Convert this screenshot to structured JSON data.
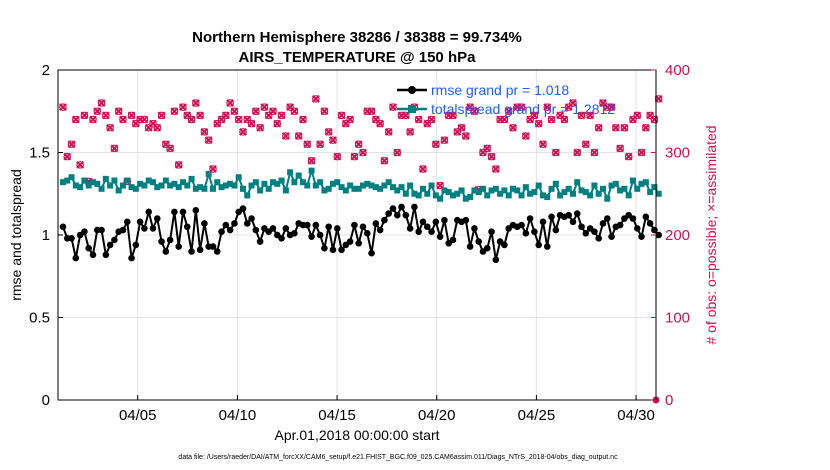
{
  "chart_data": {
    "type": "line",
    "title": "Northern Hemisphere 38286 / 38388 = 99.734%",
    "subtitle": "AIRS_TEMPERATURE @ 150 hPa",
    "xlabel": "Apr.01,2018 00:00:00 start",
    "ylabel": "rmse and totalspread",
    "y2label": "# of obs: o=possible; ×=assimilated",
    "footer": "data file: /Users/raeder/DAI/ATM_forcXX/CAM6_setup/f.e21.FHIST_BGC.f09_025.CAM6assim.011/Diags_NTrS_2018-04/obs_diag_output.nc",
    "x_ticks": [
      "04/05",
      "04/10",
      "04/15",
      "04/20",
      "04/25",
      "04/30"
    ],
    "x_tick_days": [
      5,
      10,
      15,
      20,
      25,
      30
    ],
    "xlim": [
      1,
      31
    ],
    "ylim": [
      0,
      2
    ],
    "y_ticks": [
      "0",
      "0.5",
      "1",
      "1.5",
      "2"
    ],
    "y2lim": [
      0,
      400
    ],
    "y2_ticks": [
      "0",
      "100",
      "200",
      "300",
      "400"
    ],
    "colors": {
      "rmse": "#000000",
      "spread": "#008080",
      "obs": "#cc1155",
      "legend_text": "#1f5cff"
    },
    "legend": [
      {
        "name": "rmse grand pr = 1.018"
      },
      {
        "name": "totalspread grand pr = 1.2812"
      }
    ],
    "series": [
      {
        "name": "rmse",
        "values": [
          1.05,
          0.98,
          0.98,
          0.86,
          1.0,
          1.02,
          0.92,
          0.88,
          1.03,
          1.03,
          0.88,
          0.94,
          0.97,
          1.02,
          1.03,
          1.08,
          0.86,
          0.94,
          1.08,
          1.04,
          1.14,
          1.04,
          1.1,
          0.96,
          0.9,
          0.97,
          1.14,
          0.93,
          1.14,
          1.05,
          0.9,
          1.15,
          0.91,
          1.07,
          0.93,
          0.93,
          0.9,
          1.02,
          1.06,
          1.03,
          1.07,
          1.14,
          1.16,
          1.07,
          1.1,
          1.03,
          0.96,
          1.04,
          1.02,
          1.04,
          1.0,
          0.98,
          1.04,
          1.0,
          1.01,
          1.07,
          1.06,
          1.06,
          0.99,
          1.06,
          1.0,
          0.92,
          1.05,
          0.91,
          1.04,
          0.91,
          0.94,
          0.96,
          1.06,
          0.95,
          1.05,
          1.01,
          0.89,
          1.07,
          1.03,
          1.09,
          1.13,
          1.16,
          1.12,
          1.17,
          1.12,
          1.04,
          1.17,
          1.02,
          1.08,
          1.05,
          1.02,
          1.08,
          0.99,
          1.09,
          0.95,
          0.97,
          1.09,
          1.08,
          1.09,
          0.93,
          1.04,
          0.96,
          0.9,
          0.92,
          1.02,
          0.85,
          0.96,
          0.94,
          1.04,
          1.06,
          1.05,
          1.06,
          1.01,
          1.1,
          1.02,
          0.94,
          1.08,
          0.93,
          1.11,
          1.03,
          1.12,
          1.11,
          1.12,
          1.08,
          1.13,
          1.05,
          1.01,
          1.04,
          1.02,
          0.98,
          1.07,
          1.1,
          0.99,
          1.05,
          1.06,
          1.1,
          1.12,
          1.1,
          1.04,
          0.99,
          1.11,
          1.07,
          1.03,
          1.0
        ]
      },
      {
        "name": "totalspread",
        "values": [
          1.32,
          1.33,
          1.35,
          1.3,
          1.29,
          1.33,
          1.3,
          1.32,
          1.31,
          1.28,
          1.34,
          1.3,
          1.33,
          1.27,
          1.3,
          1.33,
          1.29,
          1.28,
          1.31,
          1.3,
          1.33,
          1.32,
          1.29,
          1.3,
          1.33,
          1.3,
          1.31,
          1.29,
          1.32,
          1.3,
          1.34,
          1.28,
          1.29,
          1.28,
          1.37,
          1.28,
          1.32,
          1.29,
          1.3,
          1.31,
          1.3,
          1.35,
          1.28,
          1.24,
          1.3,
          1.32,
          1.27,
          1.31,
          1.28,
          1.32,
          1.31,
          1.33,
          1.27,
          1.38,
          1.32,
          1.36,
          1.32,
          1.3,
          1.39,
          1.3,
          1.32,
          1.27,
          1.28,
          1.31,
          1.32,
          1.29,
          1.27,
          1.3,
          1.28,
          1.28,
          1.3,
          1.31,
          1.3,
          1.29,
          1.28,
          1.3,
          1.32,
          1.29,
          1.27,
          1.29,
          1.25,
          1.3,
          1.25,
          1.24,
          1.28,
          1.25,
          1.3,
          1.24,
          1.22,
          1.27,
          1.26,
          1.24,
          1.25,
          1.27,
          1.22,
          1.23,
          1.27,
          1.26,
          1.28,
          1.24,
          1.27,
          1.28,
          1.25,
          1.27,
          1.24,
          1.28,
          1.27,
          1.24,
          1.29,
          1.25,
          1.26,
          1.3,
          1.24,
          1.23,
          1.28,
          1.31,
          1.24,
          1.26,
          1.28,
          1.25,
          1.32,
          1.27,
          1.26,
          1.24,
          1.3,
          1.25,
          1.28,
          1.22,
          1.3,
          1.31,
          1.27,
          1.28,
          1.24,
          1.33,
          1.28,
          1.31,
          1.32,
          1.26,
          1.29,
          1.25
        ]
      },
      {
        "name": "obs_possible",
        "values": [
          355,
          295,
          310,
          340,
          285,
          345,
          265,
          340,
          350,
          360,
          345,
          330,
          305,
          350,
          340,
          265,
          345,
          335,
          340,
          340,
          330,
          335,
          330,
          345,
          310,
          305,
          350,
          285,
          355,
          345,
          340,
          360,
          345,
          325,
          315,
          280,
          335,
          340,
          345,
          360,
          350,
          340,
          325,
          340,
          335,
          350,
          330,
          355,
          345,
          350,
          335,
          345,
          320,
          355,
          350,
          320,
          340,
          310,
          290,
          365,
          310,
          350,
          325,
          315,
          295,
          345,
          335,
          340,
          295,
          310,
          300,
          350,
          350,
          340,
          335,
          290,
          325,
          355,
          300,
          345,
          345,
          325,
          355,
          340,
          280,
          335,
          340,
          310,
          260,
          315,
          345,
          345,
          325,
          330,
          320,
          355,
          350,
          255,
          300,
          305,
          295,
          280,
          340,
          340,
          350,
          330,
          355,
          355,
          320,
          340,
          345,
          335,
          310,
          355,
          340,
          300,
          345,
          340,
          355,
          360,
          300,
          345,
          310,
          345,
          300,
          330,
          360,
          355,
          355,
          330,
          305,
          330,
          295,
          340,
          345,
          300,
          330,
          345,
          340,
          365
        ]
      },
      {
        "name": "obs_assimilated",
        "values": [
          355,
          295,
          310,
          340,
          285,
          345,
          265,
          340,
          350,
          360,
          345,
          330,
          305,
          350,
          340,
          265,
          345,
          335,
          340,
          340,
          330,
          335,
          330,
          345,
          310,
          305,
          350,
          285,
          355,
          345,
          340,
          360,
          345,
          325,
          315,
          280,
          335,
          340,
          345,
          360,
          350,
          340,
          325,
          340,
          335,
          350,
          330,
          355,
          345,
          350,
          335,
          345,
          320,
          355,
          350,
          320,
          340,
          310,
          290,
          365,
          310,
          350,
          325,
          315,
          295,
          345,
          335,
          340,
          295,
          310,
          300,
          350,
          350,
          340,
          335,
          290,
          325,
          355,
          300,
          345,
          345,
          325,
          355,
          340,
          280,
          335,
          340,
          310,
          260,
          315,
          345,
          345,
          325,
          330,
          320,
          355,
          350,
          255,
          300,
          305,
          295,
          280,
          340,
          340,
          350,
          330,
          355,
          355,
          320,
          340,
          345,
          335,
          310,
          355,
          340,
          300,
          345,
          340,
          355,
          360,
          300,
          345,
          310,
          345,
          300,
          330,
          360,
          355,
          355,
          330,
          305,
          330,
          295,
          340,
          345,
          300,
          330,
          345,
          340,
          365
        ]
      }
    ],
    "x_start_day": 1.25,
    "x_step_days": 0.215
  }
}
